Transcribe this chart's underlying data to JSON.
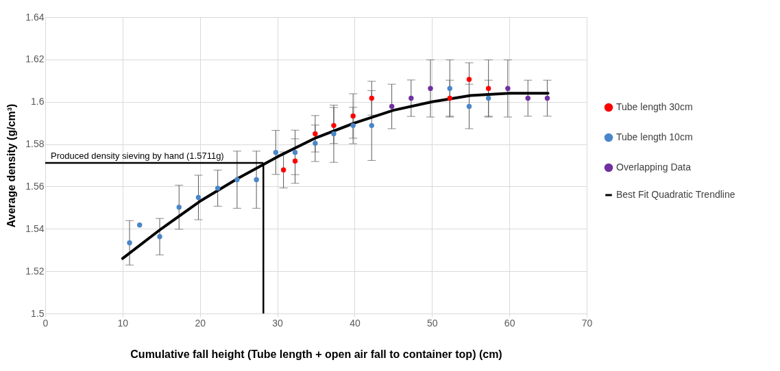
{
  "chart_data": {
    "type": "scatter",
    "xlabel": "Cumulative fall height (Tube length + open air fall to container top) (cm)",
    "ylabel": "Average density (g/cm³)",
    "xlim": [
      0,
      70
    ],
    "xticks": [
      0,
      10,
      20,
      30,
      40,
      50,
      60,
      70
    ],
    "ylim": [
      1.5,
      1.64
    ],
    "yticks": [
      1.5,
      1.52,
      1.54,
      1.56,
      1.58,
      1.6,
      1.62,
      1.64
    ],
    "grid": true,
    "legend": "right",
    "series": [
      {
        "name": "Tube length 30cm",
        "marker": "circle",
        "color": "#ff0000",
        "x": [
          30.8,
          32.3,
          34.9,
          37.3,
          39.8,
          42.2,
          52.3,
          54.8,
          57.3
        ],
        "values": [
          1.5678,
          1.572,
          1.5849,
          1.5888,
          1.5933,
          1.6017,
          1.6017,
          1.6106,
          1.6063
        ],
        "errors": [
          0.0085,
          0.0105,
          0.0086,
          0.0085,
          0.0105,
          0.008,
          0.0085,
          0.0078,
          0.0135
        ]
      },
      {
        "name": "Tube length 10cm",
        "marker": "circle",
        "color": "#4a86c8",
        "x": [
          10.9,
          12.2,
          14.8,
          17.3,
          19.8,
          22.3,
          24.8,
          27.3,
          29.8,
          32.3,
          34.9,
          37.3,
          39.8,
          42.2,
          52.3,
          54.8,
          57.3
        ],
        "values": [
          1.5334,
          1.5418,
          1.5363,
          1.5502,
          1.5548,
          1.5592,
          1.5632,
          1.5632,
          1.5761,
          1.5761,
          1.5804,
          1.5849,
          1.5888,
          1.5888,
          1.6063,
          1.5978,
          1.6017
        ],
        "errors": [
          0.0105,
          null,
          0.0086,
          0.0104,
          0.0105,
          0.0085,
          0.0135,
          0.0135,
          0.0104,
          0.0105,
          0.0086,
          0.0135,
          0.0086,
          0.0165,
          0.0135,
          0.0105,
          0.0085
        ]
      },
      {
        "name": "Overlapping Data",
        "marker": "circle",
        "color": "#7030a0",
        "x": [
          44.8,
          47.3,
          49.8,
          59.8,
          62.4,
          64.9
        ],
        "values": [
          1.5978,
          1.6017,
          1.6063,
          1.6063,
          1.6017,
          1.6017
        ],
        "errors": [
          0.0105,
          0.0086,
          0.0135,
          0.0135,
          0.0085,
          0.0085
        ]
      },
      {
        "name": "Best Fit Quadratic Trendline",
        "type": "line",
        "color": "#000000",
        "line_style": "solid",
        "x": [
          10,
          15,
          20,
          25,
          30,
          35,
          40,
          45,
          50,
          55,
          60,
          65
        ],
        "values": [
          1.526,
          1.54,
          1.553,
          1.564,
          1.574,
          1.583,
          1.59,
          1.596,
          1.6,
          1.603,
          1.604,
          1.604
        ]
      }
    ],
    "ref_lines": [
      {
        "axis": "y",
        "value": 1.5711,
        "label": "Produced density sieving by hand (1.5711g)",
        "color": "#000000"
      },
      {
        "axis": "x",
        "value": 28.2,
        "color": "#000000"
      }
    ]
  }
}
